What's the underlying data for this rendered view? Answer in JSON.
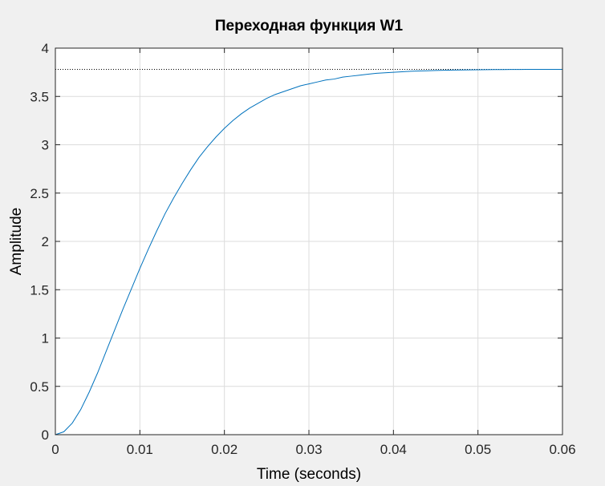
{
  "colors": {
    "figure_background": "#f0f0f0",
    "plot_background": "#ffffff",
    "axis_color": "#262626",
    "grid_color": "#dcdcdc",
    "series_color": "#0072bd",
    "steady_state_line_color": "#000000"
  },
  "chart_data": {
    "type": "line",
    "title": "Переходная функция W1",
    "xlabel": "Time (seconds)",
    "ylabel": "Amplitude",
    "xlim": [
      0,
      0.06
    ],
    "ylim": [
      0,
      4
    ],
    "xticks": [
      0,
      0.01,
      0.02,
      0.03,
      0.04,
      0.05,
      0.06
    ],
    "yticks": [
      0,
      0.5,
      1,
      1.5,
      2,
      2.5,
      3,
      3.5,
      4
    ],
    "xtick_labels": [
      "0",
      "0.01",
      "0.02",
      "0.03",
      "0.04",
      "0.05",
      "0.06"
    ],
    "ytick_labels": [
      "0",
      "0.5",
      "1",
      "1.5",
      "2",
      "2.5",
      "3",
      "3.5",
      "4"
    ],
    "grid": true,
    "steady_state_value": 3.78,
    "series": [
      {
        "x": [
          0,
          0.001,
          0.002,
          0.003,
          0.004,
          0.005,
          0.006,
          0.007,
          0.008,
          0.009,
          0.01,
          0.011,
          0.012,
          0.013,
          0.014,
          0.015,
          0.016,
          0.017,
          0.018,
          0.019,
          0.02,
          0.021,
          0.022,
          0.023,
          0.024,
          0.025,
          0.026,
          0.027,
          0.028,
          0.029,
          0.03,
          0.031,
          0.032,
          0.033,
          0.034,
          0.035,
          0.036,
          0.037,
          0.038,
          0.039,
          0.04,
          0.041,
          0.042,
          0.043,
          0.044,
          0.045,
          0.046,
          0.047,
          0.048,
          0.049,
          0.05,
          0.051,
          0.052,
          0.053,
          0.054,
          0.055,
          0.056,
          0.057,
          0.058,
          0.059,
          0.06
        ],
        "y": [
          0,
          0.03,
          0.12,
          0.26,
          0.44,
          0.64,
          0.86,
          1.08,
          1.3,
          1.51,
          1.72,
          1.92,
          2.11,
          2.29,
          2.45,
          2.6,
          2.74,
          2.87,
          2.98,
          3.08,
          3.17,
          3.25,
          3.32,
          3.38,
          3.43,
          3.48,
          3.52,
          3.55,
          3.58,
          3.61,
          3.63,
          3.65,
          3.67,
          3.68,
          3.7,
          3.71,
          3.72,
          3.73,
          3.74,
          3.745,
          3.75,
          3.755,
          3.76,
          3.763,
          3.766,
          3.769,
          3.771,
          3.773,
          3.774,
          3.775,
          3.776,
          3.777,
          3.778,
          3.778,
          3.779,
          3.779,
          3.78,
          3.78,
          3.78,
          3.78,
          3.78
        ]
      }
    ]
  }
}
